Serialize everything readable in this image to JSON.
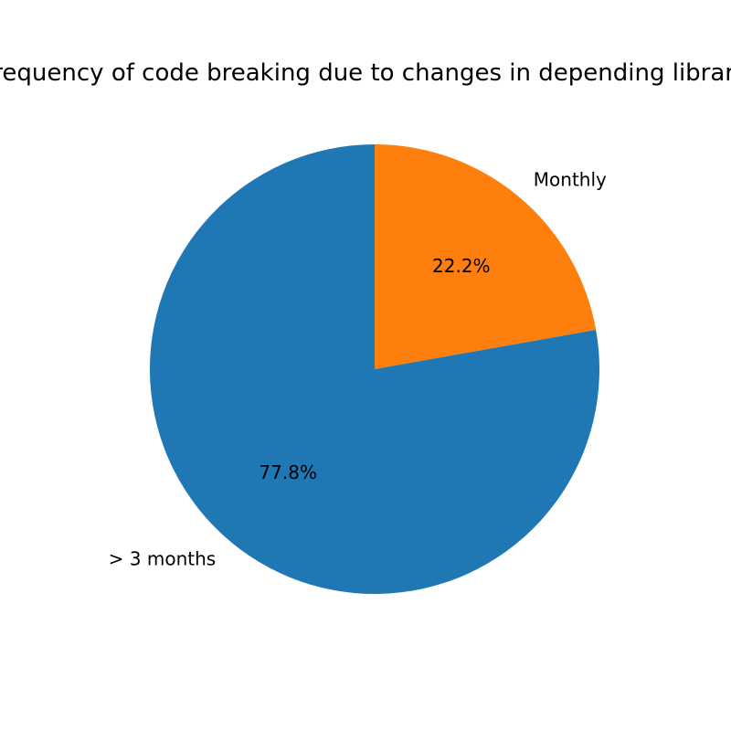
{
  "chart_data": {
    "type": "pie",
    "title": "Frequency of code breaking due to changes in depending libraries",
    "slices": [
      {
        "label": "Monthly",
        "value": 22.2,
        "percent_label": "22.2%",
        "color": "#ff7f0e"
      },
      {
        "label": "> 3 months",
        "value": 77.8,
        "percent_label": "77.8%",
        "color": "#1f77b4"
      }
    ],
    "start_angle_deg": 90,
    "direction": "clockwise"
  }
}
